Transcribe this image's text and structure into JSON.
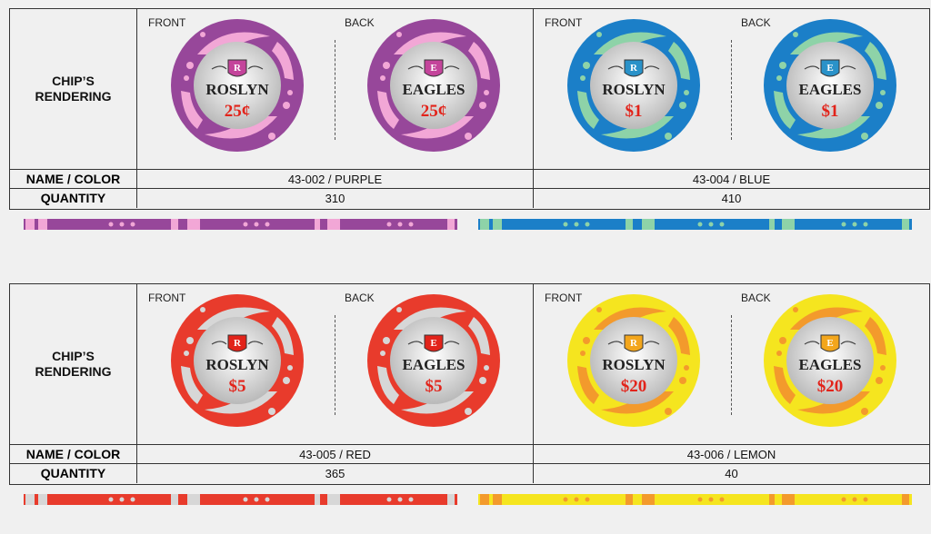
{
  "labels": {
    "rendering": "CHIP'S RENDERING",
    "rendering_line1": "CHIP’S",
    "rendering_line2": "RENDERING",
    "name_color": "NAME / COLOR",
    "quantity": "QUANTITY",
    "front": "FRONT",
    "back": "BACK"
  },
  "chips": [
    {
      "name_color": "43-002 / PURPLE",
      "quantity": "310",
      "front_text": "ROSLYN",
      "back_text": "EAGLES",
      "front_letter": "R",
      "back_letter": "E",
      "denomination": "25¢",
      "colors": {
        "base": "#97479a",
        "accent": "#f2a7d6",
        "shield": "#c4449b",
        "denom": "#e2231a"
      }
    },
    {
      "name_color": "43-004 / BLUE",
      "quantity": "410",
      "front_text": "ROSLYN",
      "back_text": "EAGLES",
      "front_letter": "R",
      "back_letter": "E",
      "denomination": "$1",
      "colors": {
        "base": "#1b7fc8",
        "accent": "#8ed3a8",
        "shield": "#2a92c9",
        "denom": "#e2231a"
      }
    },
    {
      "name_color": "43-005 / RED",
      "quantity": "365",
      "front_text": "ROSLYN",
      "back_text": "EAGLES",
      "front_letter": "R",
      "back_letter": "E",
      "denomination": "$5",
      "colors": {
        "base": "#e83b2c",
        "accent": "#d7d7d7",
        "shield": "#e2231a",
        "denom": "#e2231a"
      }
    },
    {
      "name_color": "43-006 / LEMON",
      "quantity": "40",
      "front_text": "ROSLYN",
      "back_text": "EAGLES",
      "front_letter": "R",
      "back_letter": "E",
      "denomination": "$20",
      "colors": {
        "base": "#f5e51f",
        "accent": "#f39a2c",
        "shield": "#f3a61c",
        "denom": "#e2231a"
      }
    }
  ]
}
